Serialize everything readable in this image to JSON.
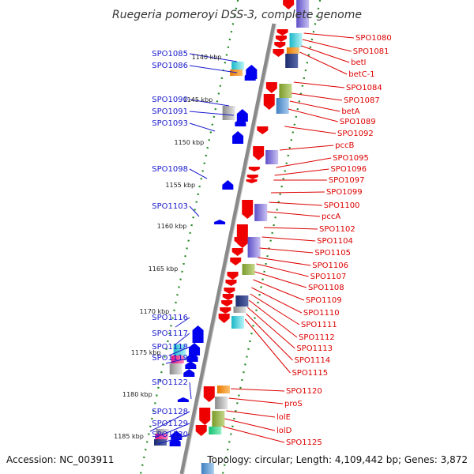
{
  "title": "Ruegeria pomeroyi DSS-3, complete genome",
  "footer": {
    "accession": "Accession: NC_003911",
    "topology": "Topology: circular; Length: 4,109,442 bp; Genes: 3,872"
  },
  "ticks": [
    "1140 kbp",
    "1145 kbp",
    "1150 kbp",
    "1155 kbp",
    "1160 kbp",
    "1165 kbp",
    "1170 kbp",
    "1175 kbp",
    "1180 kbp",
    "1185 kbp"
  ],
  "left_genes": [
    "SPO1085",
    "SPO1086",
    "SPO1090",
    "SPO1091",
    "SPO1093",
    "SPO1098",
    "SPO1103",
    "SPO1116",
    "SPO1117",
    "SPO1118",
    "SPO1119",
    "SPO1122",
    "SPO1128",
    "SPO1129",
    "SPO1130"
  ],
  "right_genes": [
    "SPO1080",
    "SPO1081",
    "betI",
    "betC-1",
    "SPO1084",
    "SPO1087",
    "betA",
    "SPO1089",
    "SPO1092",
    "pccB",
    "SPO1095",
    "SPO1096",
    "SPO1097",
    "SPO1099",
    "SPO1100",
    "pccA",
    "SPO1102",
    "SPO1104",
    "SPO1105",
    "SPO1106",
    "SPO1107",
    "SPO1108",
    "SPO1109",
    "SPO1110",
    "SPO1111",
    "SPO1112",
    "SPO1113",
    "SPO1114",
    "SPO1115",
    "SPO1120",
    "proS",
    "lolE",
    "lolD",
    "SPO1125"
  ],
  "colors": {
    "backbone": "#8a8a8a",
    "forward_strand": "#ee0000",
    "reverse_strand": "#0000ee",
    "tick_dots": "#228822",
    "left_label": "#1a1acc",
    "right_label": "#dd0000"
  }
}
